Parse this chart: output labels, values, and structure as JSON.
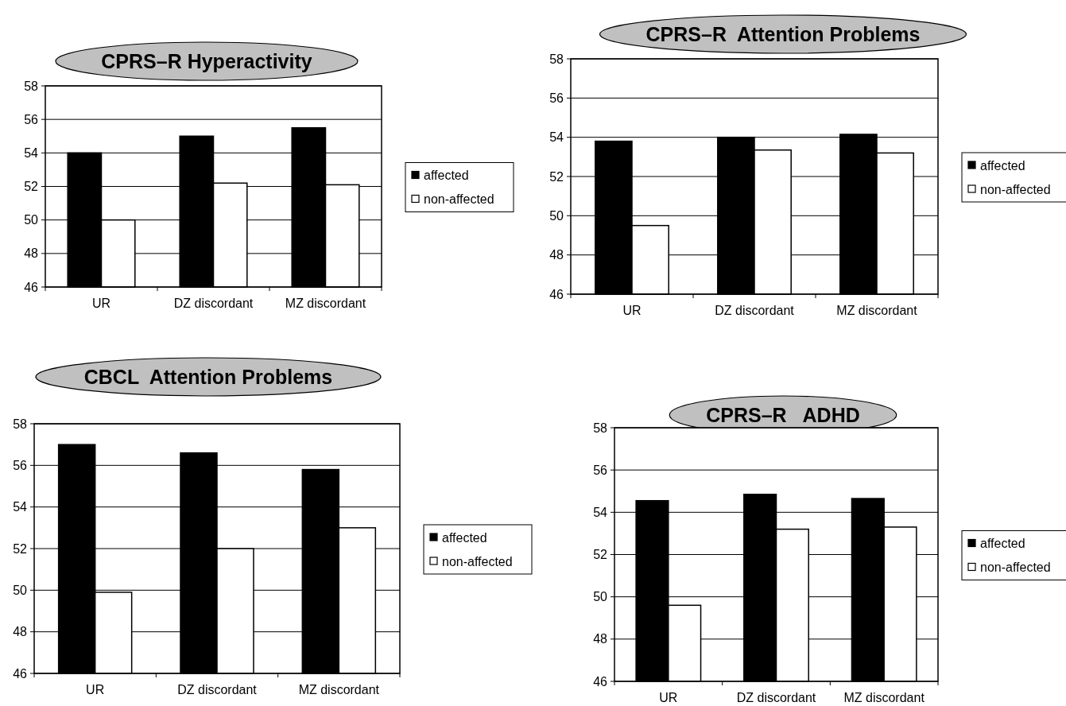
{
  "chart_data": [
    {
      "type": "bar",
      "title": "CPRS–R Hyperactivity",
      "categories": [
        "UR",
        "DZ discordant",
        "MZ discordant"
      ],
      "series": [
        {
          "name": "affected",
          "color": "#000000",
          "values": [
            54,
            55,
            55.5
          ]
        },
        {
          "name": "non-affected",
          "color": "#ffffff",
          "values": [
            50,
            52.2,
            52.1
          ]
        }
      ],
      "ylim": [
        46,
        58
      ],
      "yticks": [
        46,
        48,
        50,
        52,
        54,
        56,
        58
      ],
      "grid": "y",
      "legend": "right"
    },
    {
      "type": "bar",
      "title": "CPRS–R  Attention Problems",
      "categories": [
        "UR",
        "DZ discordant",
        "MZ discordant"
      ],
      "series": [
        {
          "name": "affected",
          "color": "#000000",
          "values": [
            53.8,
            54.0,
            54.15
          ]
        },
        {
          "name": "non-affected",
          "color": "#ffffff",
          "values": [
            49.5,
            53.35,
            53.2
          ]
        }
      ],
      "ylim": [
        46,
        58
      ],
      "yticks": [
        46,
        48,
        50,
        52,
        54,
        56,
        58
      ],
      "grid": "y",
      "legend": "right"
    },
    {
      "type": "bar",
      "title": "CBCL  Attention Problems",
      "categories": [
        "UR",
        "DZ discordant",
        "MZ discordant"
      ],
      "series": [
        {
          "name": "affected",
          "color": "#000000",
          "values": [
            57.0,
            56.6,
            55.8
          ]
        },
        {
          "name": "non-affected",
          "color": "#ffffff",
          "values": [
            49.9,
            52.0,
            53.0
          ]
        }
      ],
      "ylim": [
        46,
        58
      ],
      "yticks": [
        46,
        48,
        50,
        52,
        54,
        56,
        58
      ],
      "grid": "y",
      "legend": "right"
    },
    {
      "type": "bar",
      "title": "CPRS–R   ADHD",
      "categories": [
        "UR",
        "DZ discordant",
        "MZ discordant"
      ],
      "series": [
        {
          "name": "affected",
          "color": "#000000",
          "values": [
            54.55,
            54.85,
            54.65
          ]
        },
        {
          "name": "non-affected",
          "color": "#ffffff",
          "values": [
            49.6,
            53.2,
            53.3
          ]
        }
      ],
      "ylim": [
        46,
        58
      ],
      "yticks": [
        46,
        48,
        50,
        52,
        54,
        56,
        58
      ],
      "grid": "y",
      "legend": "right"
    }
  ]
}
